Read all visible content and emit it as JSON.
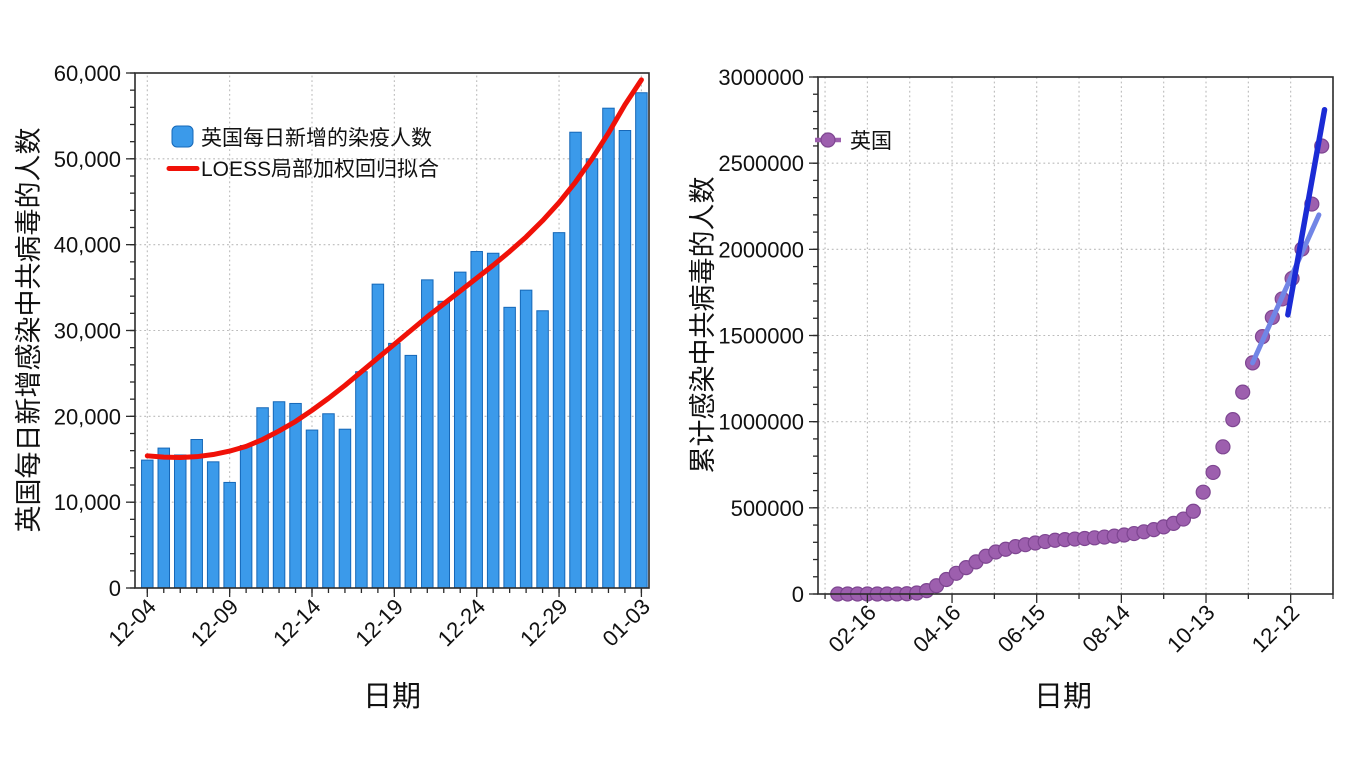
{
  "page": {
    "background": "#ffffff"
  },
  "chart_data": [
    {
      "type": "bar",
      "title": "",
      "xlabel": "日期",
      "ylabel": "英国每日新增感染中共病毒的人数",
      "legend": [
        {
          "label": "英国每日新增的染疫人数",
          "marker": "square",
          "color": "#3B9AEA"
        },
        {
          "label": "LOESS局部加权回归拟合",
          "marker": "line",
          "color": "#F01108"
        }
      ],
      "categories": [
        "12-04",
        "12-05",
        "12-06",
        "12-07",
        "12-08",
        "12-09",
        "12-10",
        "12-11",
        "12-12",
        "12-13",
        "12-14",
        "12-15",
        "12-16",
        "12-17",
        "12-18",
        "12-19",
        "12-20",
        "12-21",
        "12-22",
        "12-23",
        "12-24",
        "12-25",
        "12-26",
        "12-27",
        "12-28",
        "12-29",
        "12-30",
        "12-31",
        "01-01",
        "01-02",
        "01-03"
      ],
      "values": [
        14900,
        16300,
        15500,
        17300,
        14700,
        12300,
        16600,
        21000,
        21700,
        21500,
        18400,
        20300,
        18500,
        25200,
        35400,
        28500,
        27100,
        35900,
        33400,
        36800,
        39200,
        39000,
        32700,
        34700,
        32300,
        41400,
        53100,
        50000,
        55900,
        53300,
        57700
      ],
      "loess": [
        15400,
        15250,
        15200,
        15300,
        15550,
        15950,
        16500,
        17300,
        18300,
        19400,
        20700,
        22100,
        23600,
        25200,
        26800,
        28400,
        30000,
        31600,
        33100,
        34600,
        36100,
        37600,
        39200,
        40900,
        42800,
        44900,
        47300,
        50000,
        53000,
        56300,
        59200
      ],
      "x_tick_labels": [
        "12-04",
        "12-09",
        "12-14",
        "12-19",
        "12-24",
        "12-29",
        "01-03"
      ],
      "x_tick_indices": [
        0,
        5,
        10,
        15,
        20,
        25,
        30
      ],
      "ylim": [
        0,
        60000
      ],
      "y_ticks": [
        0,
        10000,
        20000,
        30000,
        40000,
        50000,
        60000
      ],
      "y_tick_labels": [
        "0",
        "10,000",
        "20,000",
        "30,000",
        "40,000",
        "50,000",
        "60,000"
      ],
      "bar_color": "#3B9AEA",
      "bar_edge": "#1668B8",
      "line_color": "#F01108",
      "grid": "dotted"
    },
    {
      "type": "scatter",
      "title": "",
      "xlabel": "日期",
      "ylabel": "累计感染中共病毒的人数",
      "legend": [
        {
          "label": "英国",
          "marker": "dot-line",
          "color": "#9D5FAE"
        }
      ],
      "dates": [
        "01-26",
        "02-02",
        "02-09",
        "02-16",
        "02-23",
        "03-01",
        "03-08",
        "03-15",
        "03-22",
        "03-29",
        "04-05",
        "04-12",
        "04-19",
        "04-26",
        "05-03",
        "05-10",
        "05-17",
        "05-24",
        "05-31",
        "06-07",
        "06-14",
        "06-21",
        "06-28",
        "07-05",
        "07-12",
        "07-19",
        "07-26",
        "08-02",
        "08-09",
        "08-16",
        "08-23",
        "08-30",
        "09-06",
        "09-13",
        "09-20",
        "09-27",
        "10-04",
        "10-11",
        "10-18",
        "10-25",
        "11-01",
        "11-08",
        "11-15",
        "11-22",
        "11-29",
        "12-06",
        "12-13",
        "12-20",
        "12-27",
        "01-03"
      ],
      "values": [
        0,
        2,
        4,
        9,
        13,
        36,
        273,
        1391,
        5683,
        19522,
        47806,
        84279,
        120067,
        152840,
        186599,
        219183,
        243695,
        259563,
        274762,
        286194,
        295889,
        304331,
        311727,
        315600,
        318800,
        322200,
        326000,
        330400,
        335800,
        342400,
        350700,
        361000,
        373600,
        389700,
        409700,
        434900,
        480000,
        590800,
        705500,
        854000,
        1011660,
        1171400,
        1341200,
        1493400,
        1605200,
        1712200,
        1830900,
        2002000,
        2262700,
        2599800
      ],
      "x_tick_labels": [
        "02-16",
        "04-16",
        "06-15",
        "08-14",
        "10-13",
        "12-12"
      ],
      "ylim": [
        0,
        3000000
      ],
      "y_ticks": [
        0,
        500000,
        1000000,
        1500000,
        2000000,
        2500000,
        3000000
      ],
      "y_tick_labels": [
        "0",
        "500000",
        "1000000",
        "1500000",
        "2000000",
        "2500000",
        "3000000"
      ],
      "dot_color": "#9D5FAE",
      "dot_edge": "#7E4691",
      "trend_lines": [
        {
          "name": "fit-early-trend",
          "color": "#7185E6",
          "width": 5,
          "x1": "11-15",
          "y1": 1341200,
          "x2": "01-01",
          "y2": 2200000
        },
        {
          "name": "fit-latest-trend",
          "color": "#1B2BD5",
          "width": 5.5,
          "x1": "12-10",
          "y1": 1620000,
          "x2": "01-05",
          "y2": 2810000
        }
      ]
    }
  ]
}
